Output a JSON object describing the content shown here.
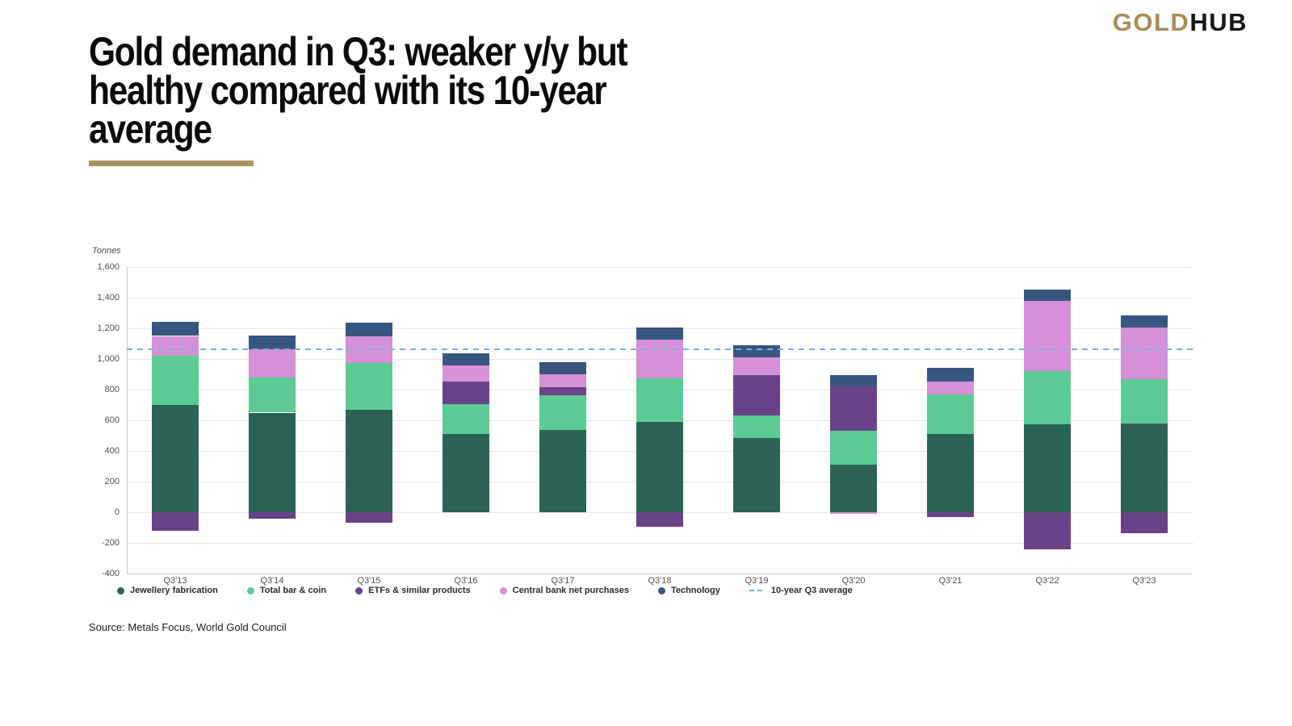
{
  "logo": {
    "gold": "GOLD",
    "hub": "HUB"
  },
  "title": "Gold demand in Q3: weaker y/y but\nhealthy compared with its 10-year\naverage",
  "source": "Source: Metals Focus, World Gold Council",
  "colors": {
    "accent_gold": "#A6925C",
    "logo_gold": "#A58E55",
    "grid": "#E7E7E7",
    "axis": "#CCCCCC",
    "average_line_blue": "#79B2DD"
  },
  "chart_data": {
    "type": "bar",
    "stacked": true,
    "unit_label": "Tonnes",
    "categories": [
      "Q3'13",
      "Q3'14",
      "Q3'15",
      "Q3'16",
      "Q3'17",
      "Q3'18",
      "Q3'19",
      "Q3'20",
      "Q3'21",
      "Q3'22",
      "Q3'23"
    ],
    "series": [
      {
        "name": "Jewellery fabrication",
        "color": "#2B6355",
        "values": [
          700,
          650,
          670,
          510,
          535,
          590,
          485,
          310,
          510,
          575,
          580
        ]
      },
      {
        "name": "Total bar & coin",
        "color": "#5BCB93",
        "values": [
          320,
          230,
          305,
          195,
          230,
          285,
          145,
          220,
          260,
          345,
          290
        ]
      },
      {
        "name": "ETFs & similar products",
        "color": "#6A4287",
        "values": [
          -120,
          -40,
          -70,
          150,
          50,
          -95,
          265,
          290,
          -30,
          -240,
          -135
        ]
      },
      {
        "name": "Central bank net purchases",
        "color": "#D491D8",
        "values": [
          130,
          185,
          170,
          105,
          85,
          250,
          115,
          -10,
          85,
          460,
          335
        ]
      },
      {
        "name": "Technology",
        "color": "#375680",
        "values": [
          90,
          90,
          90,
          75,
          80,
          80,
          80,
          75,
          85,
          75,
          80
        ]
      }
    ],
    "average_line": {
      "name": "10-year Q3 average",
      "value": 1065,
      "color": "#79B2DD",
      "style": "dashed"
    },
    "ylim": [
      -400,
      1600
    ],
    "ytick_step": 200,
    "yticks": [
      {
        "value": 1600,
        "label": "1,600"
      },
      {
        "value": 1400,
        "label": "1,400"
      },
      {
        "value": 1200,
        "label": "1,200"
      },
      {
        "value": 1000,
        "label": "1,000"
      },
      {
        "value": 800,
        "label": "800"
      },
      {
        "value": 600,
        "label": "600"
      },
      {
        "value": 400,
        "label": "400"
      },
      {
        "value": 200,
        "label": "200"
      },
      {
        "value": 0,
        "label": "0"
      },
      {
        "value": -200,
        "label": "-200"
      },
      {
        "value": -400,
        "label": "-400"
      }
    ],
    "grid": true,
    "legend_position": "bottom"
  }
}
